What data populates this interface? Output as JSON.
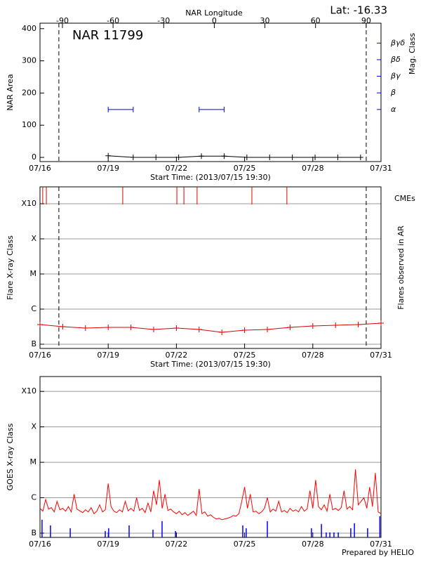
{
  "chart_data": [
    {
      "type": "line",
      "title": "NAR 11799",
      "annotation": "Lat: -16.33",
      "x2label": "NAR Longitude",
      "x2lim": [
        -103.3,
        98.8
      ],
      "x2ticks": [
        -90,
        -60,
        -30,
        0,
        30,
        60,
        90
      ],
      "xlabel": "Start Time: (2013/07/15 19:30)",
      "xlim": [
        16,
        31
      ],
      "xticks": [
        {
          "value": 16,
          "label": "07/16"
        },
        {
          "value": 19,
          "label": "07/19"
        },
        {
          "value": 22,
          "label": "07/22"
        },
        {
          "value": 25,
          "label": "07/25"
        },
        {
          "value": 28,
          "label": "07/28"
        },
        {
          "value": 31,
          "label": "07/31"
        }
      ],
      "ylabel": "NAR Area",
      "ylim": [
        -13,
        417
      ],
      "yticks": [
        0,
        100,
        200,
        300,
        400
      ],
      "y2label": "Mag. Class",
      "y2color": "#0000ff",
      "y2lim": [
        -0.14,
        8.2
      ],
      "y2ticks": [
        {
          "value": 3,
          "label": "α"
        },
        {
          "value": 4,
          "label": "β"
        },
        {
          "value": 5,
          "label": "βγ"
        },
        {
          "value": 6,
          "label": "βδ"
        },
        {
          "value": 7,
          "label": "βγδ"
        }
      ],
      "grid": false,
      "vlines": [
        16.83,
        30.35
      ],
      "series": [
        {
          "color": "#000000",
          "mark": "plus",
          "x": [
            19.0,
            20.1,
            21.1,
            22.1,
            23.1,
            24.1,
            25.1,
            26.1,
            27.1,
            28.1,
            29.1,
            30.1
          ],
          "values": [
            5,
            0,
            0,
            0,
            4,
            4,
            0,
            0,
            0,
            0,
            0,
            0
          ]
        },
        {
          "color": "#0000ff",
          "mark": "errorbar",
          "axis": "y2",
          "x": [
            19.55,
            23.55
          ],
          "xerr": [
            0.55,
            0.55
          ],
          "values": [
            3,
            3
          ]
        }
      ]
    },
    {
      "type": "line",
      "xlabel": "Start Time: (2013/07/15 19:30)",
      "xlim": [
        16,
        31
      ],
      "xticks": [
        {
          "value": 16,
          "label": "07/16"
        },
        {
          "value": 19,
          "label": "07/19"
        },
        {
          "value": 22,
          "label": "07/22"
        },
        {
          "value": 25,
          "label": "07/25"
        },
        {
          "value": 28,
          "label": "07/28"
        },
        {
          "value": 31,
          "label": "07/31"
        }
      ],
      "ylabel": "Flare X-ray Class",
      "ylim": [
        -0.12,
        4.48
      ],
      "yticks": [
        {
          "value": 0,
          "label": "B"
        },
        {
          "value": 1,
          "label": "C"
        },
        {
          "value": 2,
          "label": "M"
        },
        {
          "value": 3,
          "label": "X"
        },
        {
          "value": 4,
          "label": "X10"
        }
      ],
      "y2label": "Flares observed in AR",
      "grid": true,
      "vlines": [
        16.83,
        30.35
      ],
      "series": [
        {
          "color": "#dd0000",
          "mark": "plus",
          "x": [
            16,
            17,
            18,
            19,
            20,
            21,
            22,
            23,
            24,
            25,
            26,
            27,
            28,
            29,
            30,
            31
          ],
          "values": [
            0.56,
            0.5,
            0.46,
            0.48,
            0.48,
            0.42,
            0.46,
            0.42,
            0.34,
            0.4,
            0.42,
            0.48,
            0.52,
            0.54,
            0.56,
            0.6
          ]
        },
        {
          "name": "CMEs",
          "color": "#dd0000",
          "mark": "tick",
          "x": [
            16.12,
            16.28,
            19.64,
            22.02,
            22.33,
            22.91,
            25.32,
            26.86
          ]
        }
      ]
    },
    {
      "type": "line",
      "xlim": [
        16,
        31
      ],
      "xticks": [
        {
          "value": 16,
          "label": "07/16"
        },
        {
          "value": 19,
          "label": "07/19"
        },
        {
          "value": 22,
          "label": "07/22"
        },
        {
          "value": 25,
          "label": "07/25"
        },
        {
          "value": 28,
          "label": "07/28"
        },
        {
          "value": 31,
          "label": "07/31"
        }
      ],
      "ylabel": "GOES X-ray Class",
      "ylim": [
        -0.12,
        4.42
      ],
      "yticks": [
        {
          "value": 0,
          "label": "B"
        },
        {
          "value": 1,
          "label": "C"
        },
        {
          "value": 2,
          "label": "M"
        },
        {
          "value": 3,
          "label": "X"
        },
        {
          "value": 4,
          "label": "X10"
        }
      ],
      "grid": true,
      "series": [
        {
          "color": "#ff0000",
          "mark": "none",
          "x": [
            16,
            16.125,
            16.25,
            16.375,
            16.5,
            16.625,
            16.75,
            16.875,
            17,
            17.125,
            17.25,
            17.375,
            17.5,
            17.625,
            17.75,
            17.875,
            18,
            18.125,
            18.25,
            18.375,
            18.5,
            18.625,
            18.75,
            18.875,
            19,
            19.125,
            19.25,
            19.375,
            19.5,
            19.625,
            19.75,
            19.875,
            20,
            20.125,
            20.25,
            20.375,
            20.5,
            20.625,
            20.75,
            20.875,
            21,
            21.125,
            21.25,
            21.375,
            21.5,
            21.625,
            21.75,
            21.875,
            22,
            22.125,
            22.25,
            22.375,
            22.5,
            22.625,
            22.75,
            22.875,
            23,
            23.125,
            23.25,
            23.375,
            23.5,
            23.625,
            23.75,
            23.875,
            24,
            24.125,
            24.25,
            24.375,
            24.5,
            24.625,
            24.75,
            24.875,
            25,
            25.125,
            25.25,
            25.375,
            25.5,
            25.625,
            25.75,
            25.875,
            26,
            26.125,
            26.25,
            26.375,
            26.5,
            26.625,
            26.75,
            26.875,
            27,
            27.125,
            27.25,
            27.375,
            27.5,
            27.625,
            27.75,
            27.875,
            28,
            28.125,
            28.25,
            28.375,
            28.5,
            28.625,
            28.75,
            28.875,
            29,
            29.125,
            29.25,
            29.375,
            29.5,
            29.625,
            29.75,
            29.875,
            30,
            30.125,
            30.25,
            30.375,
            30.5,
            30.625,
            30.75,
            30.875,
            31
          ],
          "values": [
            0.7,
            0.62,
            0.95,
            0.68,
            0.72,
            0.6,
            0.9,
            0.66,
            0.7,
            0.62,
            0.75,
            0.6,
            1.1,
            0.68,
            0.63,
            0.58,
            0.66,
            0.6,
            0.72,
            0.55,
            0.62,
            0.8,
            0.6,
            0.66,
            1.4,
            0.75,
            0.62,
            0.58,
            0.66,
            0.6,
            0.9,
            0.63,
            0.7,
            0.62,
            1.0,
            0.64,
            0.7,
            0.58,
            0.85,
            0.6,
            1.2,
            0.8,
            1.5,
            0.7,
            1.1,
            0.64,
            0.68,
            0.6,
            0.55,
            0.62,
            0.52,
            0.58,
            0.5,
            0.56,
            0.62,
            0.5,
            1.25,
            0.55,
            0.6,
            0.48,
            0.52,
            0.45,
            0.4,
            0.42,
            0.38,
            0.4,
            0.42,
            0.45,
            0.5,
            0.48,
            0.55,
            0.9,
            1.3,
            0.7,
            1.1,
            0.6,
            0.62,
            0.55,
            0.6,
            0.7,
            1.0,
            0.6,
            0.68,
            0.62,
            0.9,
            0.6,
            0.64,
            0.58,
            0.7,
            0.62,
            0.66,
            0.6,
            0.75,
            0.62,
            0.68,
            1.2,
            0.7,
            1.5,
            0.75,
            0.66,
            0.8,
            0.62,
            1.1,
            0.66,
            0.7,
            0.64,
            0.72,
            1.2,
            0.68,
            0.75,
            0.66,
            1.8,
            0.8,
            0.9,
            1.0,
            0.7,
            1.3,
            0.75,
            1.7,
            0.6,
            0.55
          ]
        },
        {
          "color": "#0000ff",
          "mark": "bar",
          "x": [
            16.09,
            16.46,
            17.33,
            18.87,
            19.02,
            19.92,
            20.97,
            21.37,
            21.96,
            24.92,
            25.07,
            26.0,
            27.94,
            28.38,
            28.59,
            28.75,
            28.93,
            29.12,
            29.67,
            29.83,
            30.41,
            30.95
          ],
          "values": [
            0.38,
            0.22,
            0.14,
            0.06,
            0.14,
            0.22,
            0.1,
            0.34,
            0.06,
            0.22,
            0.14,
            0.34,
            0.14,
            0.26,
            0.02,
            0.02,
            0.02,
            0.02,
            0.14,
            0.28,
            0.14,
            0.48
          ]
        }
      ]
    }
  ],
  "footer": "Prepared by HELIO"
}
